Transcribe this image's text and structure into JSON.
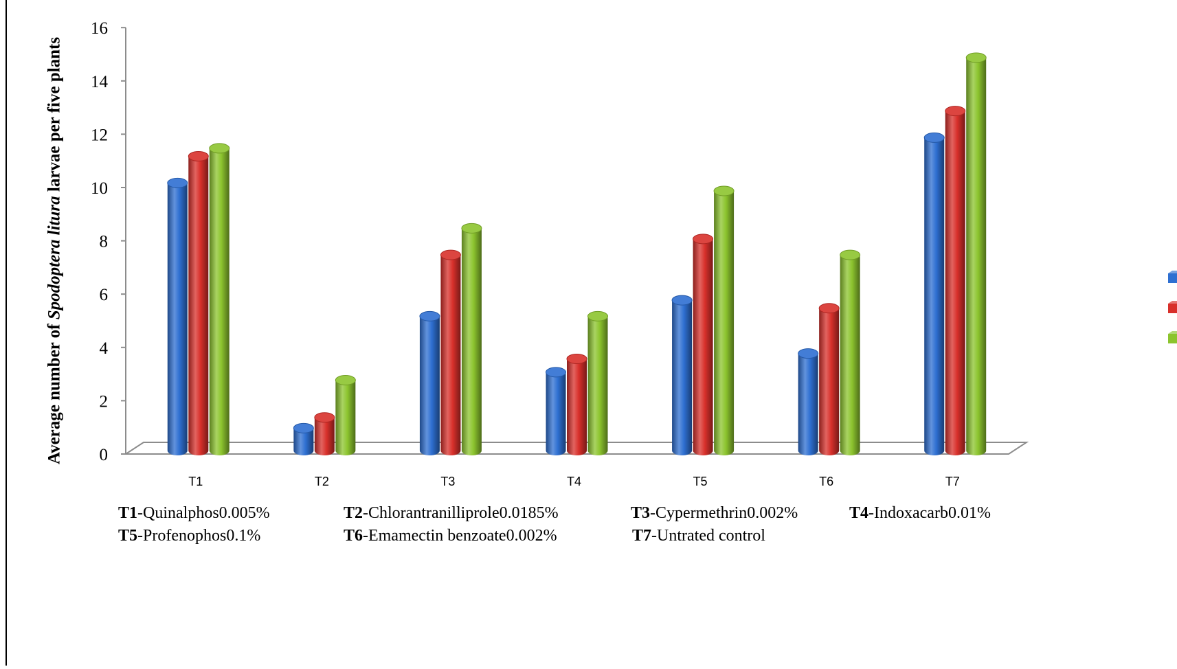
{
  "chart_data": {
    "type": "bar",
    "style": "3d-cylinder",
    "title": "",
    "ylabel_parts": [
      "Average number of ",
      "Spodoptera litura",
      " larvae per five plants"
    ],
    "xlabel": "",
    "categories": [
      "T1",
      "T2",
      "T3",
      "T4",
      "T5",
      "T6",
      "T7"
    ],
    "ylim": [
      0,
      16
    ],
    "yticks": [
      0,
      2,
      4,
      6,
      8,
      10,
      12,
      14,
      16
    ],
    "grid": false,
    "legend": "right",
    "series": [
      {
        "color": "#2e6fd1",
        "values": [
          10.3,
          1.1,
          5.3,
          3.2,
          5.9,
          3.9,
          12.0
        ]
      },
      {
        "color": "#d8302b",
        "values": [
          11.3,
          1.5,
          7.6,
          3.7,
          8.2,
          5.6,
          13.0
        ]
      },
      {
        "color": "#8cc42e",
        "values": [
          11.6,
          2.9,
          8.6,
          5.3,
          10.0,
          7.6,
          15.0
        ]
      }
    ],
    "treatment_key": [
      {
        "code": "T1",
        "desc": "-Quinalphos0.005%"
      },
      {
        "code": "T2",
        "desc": "-Chlorantranilliprole0.0185%"
      },
      {
        "code": "T3",
        "desc": "-Cypermethrin0.002%"
      },
      {
        "code": "T4",
        "desc": "-Indoxacarb0.01%"
      },
      {
        "code": "T5",
        "desc": "-Profenophos0.1%"
      },
      {
        "code": "T6",
        "desc": "-Emamectin benzoate0.002%"
      },
      {
        "code": "T7",
        "desc": "-Untrated control"
      }
    ]
  }
}
